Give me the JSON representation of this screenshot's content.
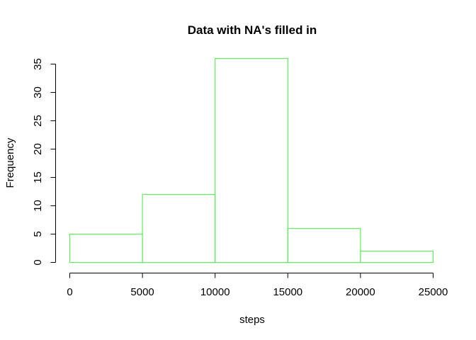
{
  "chart_data": {
    "type": "bar",
    "title": "Data with NA's filled in",
    "xlabel": "steps",
    "ylabel": "Frequency",
    "bins": [
      {
        "start": 0,
        "end": 5000,
        "count": 5
      },
      {
        "start": 5000,
        "end": 10000,
        "count": 12
      },
      {
        "start": 10000,
        "end": 15000,
        "count": 36
      },
      {
        "start": 15000,
        "end": 20000,
        "count": 6
      },
      {
        "start": 20000,
        "end": 25000,
        "count": 2
      }
    ],
    "xlim": [
      0,
      25000
    ],
    "ylim": [
      0,
      35
    ],
    "x_ticks": [
      0,
      5000,
      10000,
      15000,
      20000,
      25000
    ],
    "y_ticks": [
      0,
      5,
      10,
      15,
      20,
      25,
      30,
      35
    ],
    "bar_border_color": "#5cf25c",
    "grid": false,
    "legend": "none"
  }
}
